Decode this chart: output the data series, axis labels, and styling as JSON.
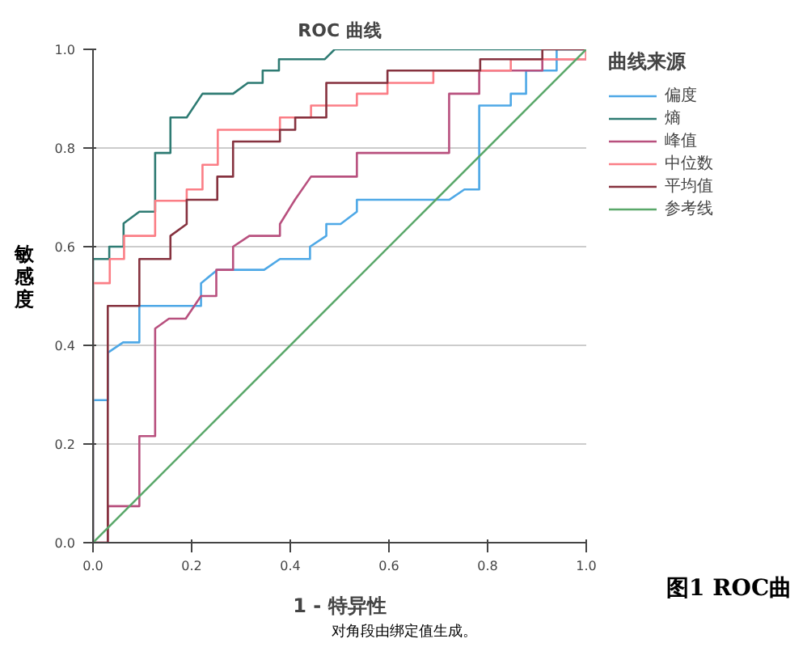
{
  "chart_data": {
    "type": "line",
    "title": "ROC 曲线",
    "xlabel": "1 - 特异性",
    "ylabel": "敏感度",
    "legend_title": "曲线来源",
    "annotations": [
      "对角段由绑定值生成。",
      "图1 ROC曲"
    ],
    "xlim": [
      0,
      1
    ],
    "ylim": [
      0,
      1
    ],
    "xticks": [
      {
        "value": 0,
        "label": "0.0"
      },
      {
        "value": 0.2,
        "label": "0.2"
      },
      {
        "value": 0.4,
        "label": "0.4"
      },
      {
        "value": 0.6,
        "label": "0.6"
      },
      {
        "value": 0.8,
        "label": "0.8"
      },
      {
        "value": 1,
        "label": "1.0"
      }
    ],
    "yticks": [
      {
        "value": 0,
        "label": "0.0"
      },
      {
        "value": 0.2,
        "label": "0.2"
      },
      {
        "value": 0.4,
        "label": "0.4"
      },
      {
        "value": 0.6,
        "label": "0.6"
      },
      {
        "value": 0.8,
        "label": "0.8"
      },
      {
        "value": 1,
        "label": "1.0"
      }
    ],
    "grid": "y",
    "legend": "right",
    "series": [
      {
        "name": "偏度",
        "color": "#4ea8e6",
        "x": [
          0,
          0,
          0.03,
          0.03,
          0.061,
          0.094,
          0.094,
          0.219,
          0.219,
          0.252,
          0.347,
          0.379,
          0.44,
          0.44,
          0.473,
          0.473,
          0.502,
          0.535,
          0.535,
          0.722,
          0.753,
          0.783,
          0.783,
          0.847,
          0.847,
          0.878,
          0.878,
          0.94,
          0.94,
          1
        ],
        "values": [
          0,
          0.289,
          0.289,
          0.385,
          0.406,
          0.406,
          0.48,
          0.48,
          0.526,
          0.553,
          0.553,
          0.575,
          0.575,
          0.6,
          0.622,
          0.646,
          0.646,
          0.671,
          0.695,
          0.695,
          0.716,
          0.716,
          0.886,
          0.886,
          0.91,
          0.91,
          0.957,
          0.957,
          1,
          1
        ]
      },
      {
        "name": "熵",
        "color": "#2e7b73",
        "x": [
          0,
          0,
          0.033,
          0.033,
          0.062,
          0.062,
          0.094,
          0.126,
          0.126,
          0.157,
          0.157,
          0.19,
          0.222,
          0.284,
          0.314,
          0.344,
          0.344,
          0.377,
          0.377,
          0.47,
          0.49,
          1
        ],
        "values": [
          0,
          0.575,
          0.575,
          0.6,
          0.6,
          0.647,
          0.671,
          0.671,
          0.79,
          0.79,
          0.862,
          0.862,
          0.91,
          0.91,
          0.932,
          0.932,
          0.957,
          0.957,
          0.98,
          0.98,
          1,
          1
        ]
      },
      {
        "name": "峰值",
        "color": "#b8507e",
        "x": [
          0,
          0.03,
          0.03,
          0.094,
          0.094,
          0.126,
          0.126,
          0.154,
          0.188,
          0.219,
          0.25,
          0.25,
          0.284,
          0.284,
          0.317,
          0.379,
          0.379,
          0.41,
          0.442,
          0.535,
          0.535,
          0.722,
          0.722,
          0.783,
          0.783,
          0.911,
          0.911,
          1,
          1
        ],
        "values": [
          0,
          0,
          0.074,
          0.074,
          0.216,
          0.216,
          0.434,
          0.454,
          0.454,
          0.5,
          0.5,
          0.553,
          0.553,
          0.6,
          0.622,
          0.622,
          0.646,
          0.696,
          0.742,
          0.742,
          0.79,
          0.79,
          0.91,
          0.91,
          0.957,
          0.957,
          0.98,
          0.98,
          1
        ]
      },
      {
        "name": "中位数",
        "color": "#fb7e86",
        "x": [
          0,
          0,
          0.034,
          0.034,
          0.063,
          0.063,
          0.126,
          0.126,
          0.19,
          0.19,
          0.222,
          0.222,
          0.253,
          0.253,
          0.379,
          0.379,
          0.442,
          0.442,
          0.535,
          0.535,
          0.597,
          0.597,
          0.69,
          0.69,
          0.847,
          0.847,
          1,
          1
        ],
        "values": [
          0,
          0.526,
          0.526,
          0.575,
          0.575,
          0.622,
          0.622,
          0.693,
          0.693,
          0.716,
          0.716,
          0.766,
          0.766,
          0.837,
          0.837,
          0.862,
          0.862,
          0.886,
          0.886,
          0.91,
          0.91,
          0.932,
          0.932,
          0.957,
          0.957,
          0.98,
          0.98,
          1
        ]
      },
      {
        "name": "平均值",
        "color": "#86323f",
        "x": [
          0,
          0.03,
          0.03,
          0.094,
          0.094,
          0.157,
          0.157,
          0.19,
          0.19,
          0.252,
          0.252,
          0.284,
          0.284,
          0.379,
          0.379,
          0.41,
          0.41,
          0.473,
          0.473,
          0.597,
          0.597,
          0.785,
          0.785,
          0.911,
          0.911,
          1
        ],
        "values": [
          0,
          0,
          0.48,
          0.48,
          0.575,
          0.575,
          0.622,
          0.646,
          0.695,
          0.695,
          0.742,
          0.742,
          0.813,
          0.813,
          0.837,
          0.837,
          0.862,
          0.862,
          0.932,
          0.932,
          0.957,
          0.957,
          0.98,
          0.98,
          1,
          1
        ]
      },
      {
        "name": "参考线",
        "color": "#5aa86a",
        "x": [
          0,
          1
        ],
        "values": [
          0,
          1
        ]
      }
    ]
  }
}
